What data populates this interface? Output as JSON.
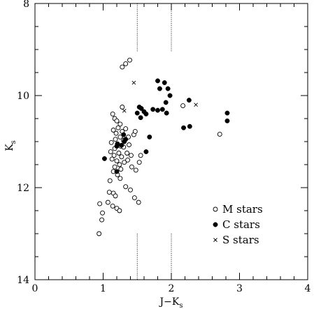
{
  "chart_data": {
    "type": "scatter",
    "xlabel": {
      "main": "J−K",
      "sub": "s"
    },
    "ylabel": {
      "main": "K",
      "sub": "s"
    },
    "xlim": [
      0,
      4
    ],
    "ylim": [
      14,
      8
    ],
    "y_inverted": true,
    "x_ticks": [
      "0",
      "1",
      "2",
      "3",
      "4"
    ],
    "y_ticks": [
      "8",
      "10",
      "12",
      "14"
    ],
    "reference_lines_x": [
      1.5,
      2.0
    ],
    "legend": {
      "placement": "bottom-right",
      "entries": [
        {
          "marker": "open-circle",
          "label": "M stars"
        },
        {
          "marker": "filled-circle",
          "label": "C stars"
        },
        {
          "marker": "cross",
          "label": "S stars"
        }
      ]
    },
    "series": [
      {
        "name": "M stars",
        "marker": "open-circle",
        "points": [
          [
            1.28,
            9.38
          ],
          [
            1.33,
            9.31
          ],
          [
            1.39,
            9.23
          ],
          [
            1.28,
            10.25
          ],
          [
            2.17,
            10.22
          ],
          [
            2.71,
            10.84
          ],
          [
            1.14,
            10.4
          ],
          [
            1.17,
            10.5
          ],
          [
            1.2,
            10.55
          ],
          [
            1.25,
            10.62
          ],
          [
            1.22,
            10.7
          ],
          [
            1.15,
            10.75
          ],
          [
            1.28,
            10.78
          ],
          [
            1.33,
            10.72
          ],
          [
            1.19,
            10.82
          ],
          [
            1.25,
            10.9
          ],
          [
            1.18,
            10.95
          ],
          [
            1.3,
            10.98
          ],
          [
            1.37,
            10.9
          ],
          [
            1.45,
            10.85
          ],
          [
            1.12,
            11.02
          ],
          [
            1.21,
            11.05
          ],
          [
            1.26,
            11.1
          ],
          [
            1.17,
            11.15
          ],
          [
            1.3,
            11.12
          ],
          [
            1.38,
            11.07
          ],
          [
            1.47,
            10.78
          ],
          [
            1.11,
            11.22
          ],
          [
            1.23,
            11.25
          ],
          [
            1.16,
            11.3
          ],
          [
            1.27,
            11.33
          ],
          [
            1.35,
            11.25
          ],
          [
            1.41,
            11.3
          ],
          [
            1.13,
            11.38
          ],
          [
            1.2,
            11.42
          ],
          [
            1.24,
            11.5
          ],
          [
            1.17,
            11.55
          ],
          [
            1.26,
            11.6
          ],
          [
            1.31,
            11.45
          ],
          [
            1.36,
            11.4
          ],
          [
            1.15,
            11.65
          ],
          [
            1.21,
            11.72
          ],
          [
            1.25,
            11.8
          ],
          [
            1.1,
            11.85
          ],
          [
            1.55,
            11.3
          ],
          [
            1.53,
            11.45
          ],
          [
            1.42,
            11.55
          ],
          [
            1.48,
            11.62
          ],
          [
            1.33,
            11.98
          ],
          [
            1.4,
            12.05
          ],
          [
            1.46,
            12.22
          ],
          [
            1.15,
            12.12
          ],
          [
            1.18,
            12.18
          ],
          [
            1.07,
            12.32
          ],
          [
            1.14,
            12.4
          ],
          [
            1.2,
            12.45
          ],
          [
            1.24,
            12.5
          ],
          [
            0.95,
            12.35
          ],
          [
            0.99,
            12.55
          ],
          [
            0.98,
            12.7
          ],
          [
            0.94,
            13.0
          ],
          [
            1.52,
            12.32
          ],
          [
            1.09,
            12.1
          ]
        ]
      },
      {
        "name": "C stars",
        "marker": "filled-circle",
        "points": [
          [
            1.8,
            9.68
          ],
          [
            1.9,
            9.72
          ],
          [
            1.83,
            9.85
          ],
          [
            1.95,
            9.85
          ],
          [
            1.98,
            10.0
          ],
          [
            1.92,
            10.15
          ],
          [
            2.26,
            10.1
          ],
          [
            1.53,
            10.25
          ],
          [
            1.56,
            10.28
          ],
          [
            1.5,
            10.38
          ],
          [
            1.6,
            10.35
          ],
          [
            1.63,
            10.4
          ],
          [
            1.55,
            10.48
          ],
          [
            1.73,
            10.3
          ],
          [
            1.8,
            10.32
          ],
          [
            1.87,
            10.3
          ],
          [
            1.93,
            10.38
          ],
          [
            2.18,
            10.7
          ],
          [
            2.27,
            10.67
          ],
          [
            2.82,
            10.38
          ],
          [
            2.82,
            10.55
          ],
          [
            1.68,
            10.9
          ],
          [
            1.33,
            10.95
          ],
          [
            1.31,
            11.0
          ],
          [
            1.21,
            11.05
          ],
          [
            1.2,
            11.1
          ],
          [
            1.27,
            11.08
          ],
          [
            1.63,
            11.22
          ],
          [
            1.02,
            11.37
          ],
          [
            1.2,
            11.65
          ],
          [
            1.3,
            10.85
          ]
        ]
      },
      {
        "name": "S stars",
        "marker": "cross",
        "points": [
          [
            1.45,
            9.72
          ],
          [
            2.36,
            10.2
          ],
          [
            1.31,
            10.33
          ],
          [
            1.31,
            10.95
          ]
        ]
      }
    ]
  }
}
